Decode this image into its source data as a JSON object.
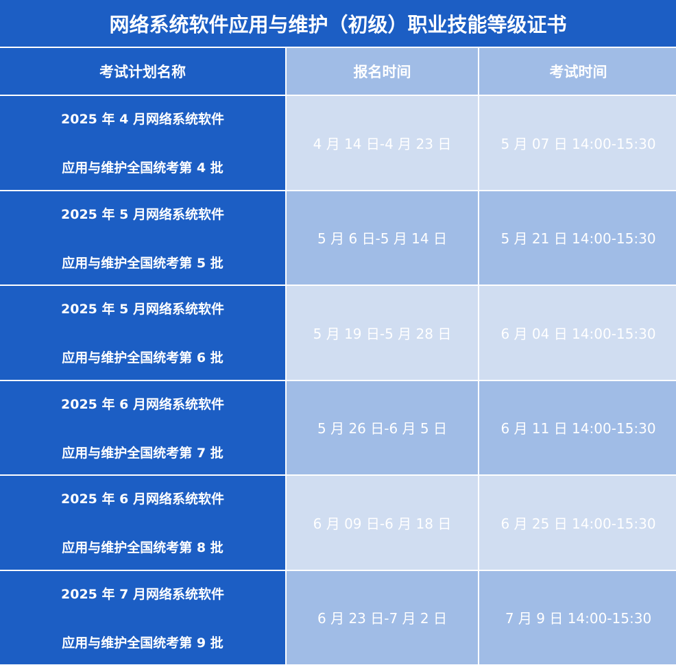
{
  "title": "网络系统软件应用与维护（初级）职业技能等级证书",
  "headers": [
    "考试计划名称",
    "报名时间",
    "考试时间"
  ],
  "rows": [
    {
      "name_line1": "2025 年 4 月网络系统软件",
      "name_line2": "应用与维护全国统考第 4 批",
      "registration": "4 月 14 日-4 月 23 日",
      "exam": "5 月 07 日  14:00-15:30"
    },
    {
      "name_line1": "2025 年 5 月网络系统软件",
      "name_line2": "应用与维护全国统考第 5 批",
      "registration": "5 月 6 日-5 月 14 日",
      "exam": "5 月 21 日  14:00-15:30"
    },
    {
      "name_line1": "2025 年 5 月网络系统软件",
      "name_line2": "应用与维护全国统考第 6 批",
      "registration": "5 月 19 日-5 月 28 日",
      "exam": "6 月 04 日  14:00-15:30"
    },
    {
      "name_line1": "2025 年 6 月网络系统软件",
      "name_line2": "应用与维护全国统考第 7 批",
      "registration": "5 月 26 日-6 月 5 日",
      "exam": "6 月 11 日  14:00-15:30"
    },
    {
      "name_line1": "2025 年 6 月网络系统软件",
      "name_line2": "应用与维护全国统考第 8 批",
      "registration": "6 月 09 日-6 月 18 日",
      "exam": "6 月 25 日  14:00-15:30"
    },
    {
      "name_line1": "2025 年 7 月网络系统软件",
      "name_line2": "应用与维护全国统考第 9 批",
      "registration": "6 月 23 日-7 月 2 日",
      "exam": "7 月 9 日  14:00-15:30"
    }
  ],
  "colors": {
    "dark_blue": "#1c5ec4",
    "mid_blue": "#a0bce6",
    "light_blue": "#d0ddf1"
  }
}
